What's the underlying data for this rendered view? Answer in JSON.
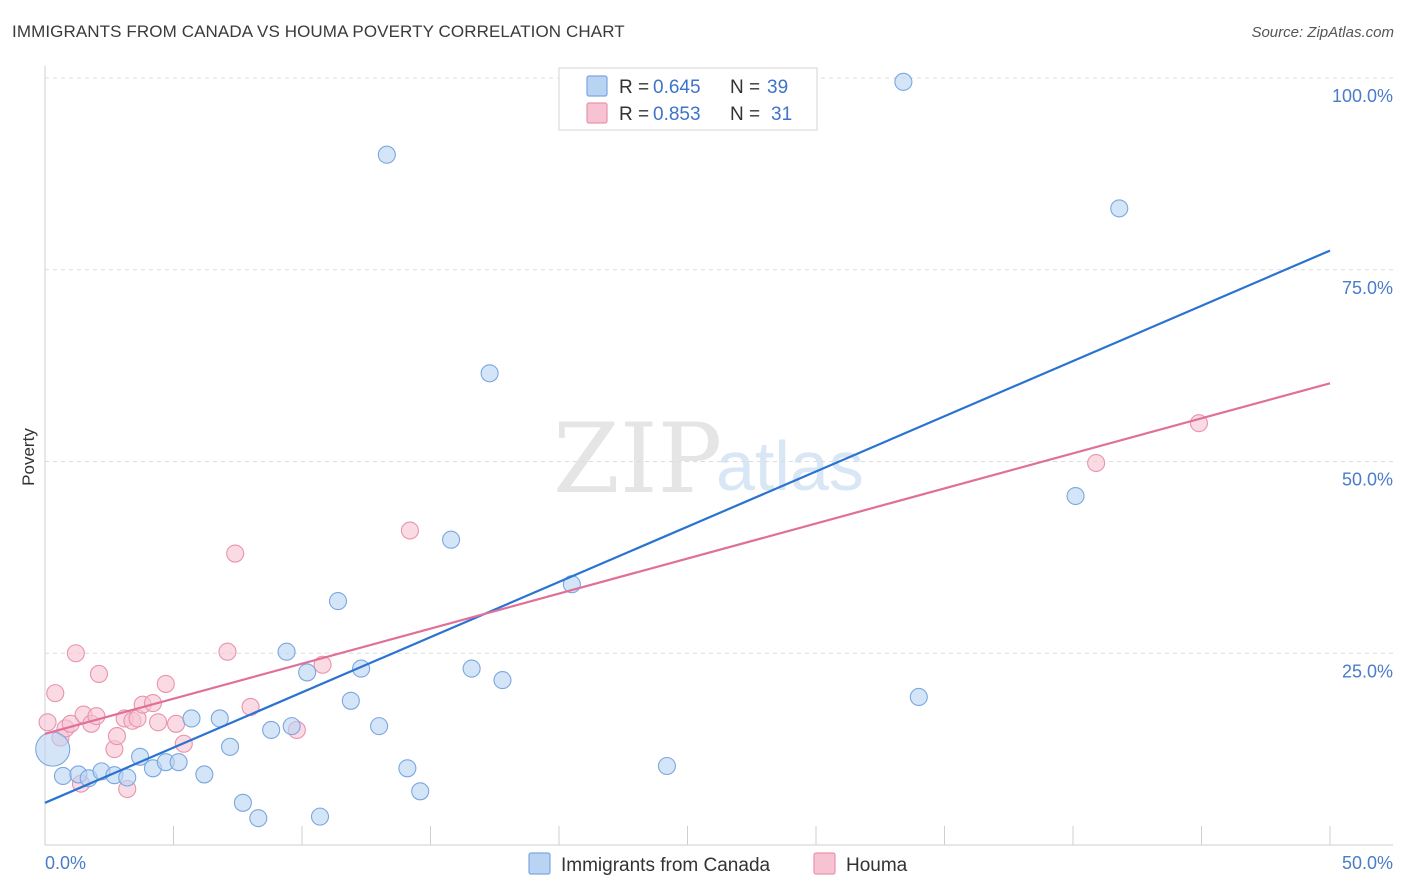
{
  "header": {
    "title": "IMMIGRANTS FROM CANADA VS HOUMA POVERTY CORRELATION CHART",
    "source": "Source: ZipAtlas.com"
  },
  "watermark": {
    "zip": "ZIP",
    "atlas": "atlas"
  },
  "legend": {
    "items": [
      {
        "r_label": "R =",
        "r_value": "0.645",
        "n_label": "N =",
        "n_value": "39"
      },
      {
        "r_label": "R =",
        "r_value": "0.853",
        "n_label": "N =",
        "n_value": "31"
      }
    ]
  },
  "colors": {
    "blue_fill": "#b9d3f3",
    "blue_stroke": "#7aa7e0",
    "blue_line": "#2a73d1",
    "pink_fill": "#f7c3d2",
    "pink_stroke": "#e993ad",
    "pink_line": "#e0709a"
  },
  "chart_data": {
    "type": "scatter",
    "title": "IMMIGRANTS FROM CANADA VS HOUMA POVERTY CORRELATION CHART",
    "xlabel": "",
    "ylabel": "Poverty",
    "xlim": [
      0,
      50
    ],
    "ylim": [
      0,
      100
    ],
    "x_tick_labels": [
      "0.0%",
      "50.0%"
    ],
    "y_ticks": [
      25,
      50,
      75,
      100
    ],
    "y_tick_labels": [
      "25.0%",
      "50.0%",
      "75.0%",
      "100.0%"
    ],
    "grid": true,
    "legend_position": "top-center",
    "series": [
      {
        "name": "Immigrants from Canada",
        "color": "#7aa7e0",
        "R": 0.645,
        "N": 39,
        "trend": {
          "x": [
            0,
            50
          ],
          "y": [
            5.5,
            77.5
          ]
        },
        "points": [
          {
            "x": 0.3,
            "y": 12.5,
            "big": true
          },
          {
            "x": 0.7,
            "y": 9.0
          },
          {
            "x": 1.3,
            "y": 9.2
          },
          {
            "x": 1.7,
            "y": 8.7
          },
          {
            "x": 2.2,
            "y": 9.6
          },
          {
            "x": 2.7,
            "y": 9.1
          },
          {
            "x": 3.2,
            "y": 8.8
          },
          {
            "x": 3.7,
            "y": 11.5
          },
          {
            "x": 4.2,
            "y": 10.0
          },
          {
            "x": 4.7,
            "y": 10.8
          },
          {
            "x": 5.2,
            "y": 10.8
          },
          {
            "x": 5.7,
            "y": 16.5
          },
          {
            "x": 6.2,
            "y": 9.2
          },
          {
            "x": 6.8,
            "y": 16.5
          },
          {
            "x": 7.2,
            "y": 12.8
          },
          {
            "x": 7.7,
            "y": 5.5
          },
          {
            "x": 8.3,
            "y": 3.5
          },
          {
            "x": 8.8,
            "y": 15.0
          },
          {
            "x": 9.4,
            "y": 25.2
          },
          {
            "x": 9.6,
            "y": 15.5
          },
          {
            "x": 10.2,
            "y": 22.5
          },
          {
            "x": 10.7,
            "y": 3.7
          },
          {
            "x": 11.4,
            "y": 31.8
          },
          {
            "x": 11.9,
            "y": 18.8
          },
          {
            "x": 12.3,
            "y": 23.0
          },
          {
            "x": 13.0,
            "y": 15.5
          },
          {
            "x": 13.3,
            "y": 90.0
          },
          {
            "x": 14.1,
            "y": 10.0
          },
          {
            "x": 14.6,
            "y": 7.0
          },
          {
            "x": 15.8,
            "y": 39.8
          },
          {
            "x": 16.6,
            "y": 23.0
          },
          {
            "x": 17.3,
            "y": 61.5
          },
          {
            "x": 17.8,
            "y": 21.5
          },
          {
            "x": 20.5,
            "y": 34.0
          },
          {
            "x": 24.2,
            "y": 10.3
          },
          {
            "x": 33.4,
            "y": 99.5
          },
          {
            "x": 34.0,
            "y": 19.3
          },
          {
            "x": 40.1,
            "y": 45.5
          },
          {
            "x": 41.8,
            "y": 83.0
          }
        ]
      },
      {
        "name": "Houma",
        "color": "#e993ad",
        "R": 0.853,
        "N": 31,
        "trend": {
          "x": [
            0,
            50
          ],
          "y": [
            14.5,
            60.2
          ]
        },
        "points": [
          {
            "x": 0.1,
            "y": 16.0
          },
          {
            "x": 0.4,
            "y": 19.8
          },
          {
            "x": 0.6,
            "y": 14.0
          },
          {
            "x": 0.8,
            "y": 15.2
          },
          {
            "x": 1.0,
            "y": 15.8
          },
          {
            "x": 1.2,
            "y": 25.0
          },
          {
            "x": 1.4,
            "y": 8.0
          },
          {
            "x": 1.5,
            "y": 17.0
          },
          {
            "x": 1.8,
            "y": 15.8
          },
          {
            "x": 2.0,
            "y": 16.8
          },
          {
            "x": 2.1,
            "y": 22.3
          },
          {
            "x": 2.7,
            "y": 12.5
          },
          {
            "x": 2.8,
            "y": 14.2
          },
          {
            "x": 3.1,
            "y": 16.5
          },
          {
            "x": 3.2,
            "y": 7.3
          },
          {
            "x": 3.4,
            "y": 16.2
          },
          {
            "x": 3.6,
            "y": 16.5
          },
          {
            "x": 3.8,
            "y": 18.3
          },
          {
            "x": 4.2,
            "y": 18.5
          },
          {
            "x": 4.4,
            "y": 16.0
          },
          {
            "x": 4.7,
            "y": 21.0
          },
          {
            "x": 5.1,
            "y": 15.8
          },
          {
            "x": 5.4,
            "y": 13.2
          },
          {
            "x": 7.1,
            "y": 25.2
          },
          {
            "x": 7.4,
            "y": 38.0
          },
          {
            "x": 8.0,
            "y": 18.0
          },
          {
            "x": 9.8,
            "y": 15.0
          },
          {
            "x": 10.8,
            "y": 23.5
          },
          {
            "x": 14.2,
            "y": 41.0
          },
          {
            "x": 40.9,
            "y": 49.8
          },
          {
            "x": 44.9,
            "y": 55.0
          }
        ]
      }
    ]
  }
}
